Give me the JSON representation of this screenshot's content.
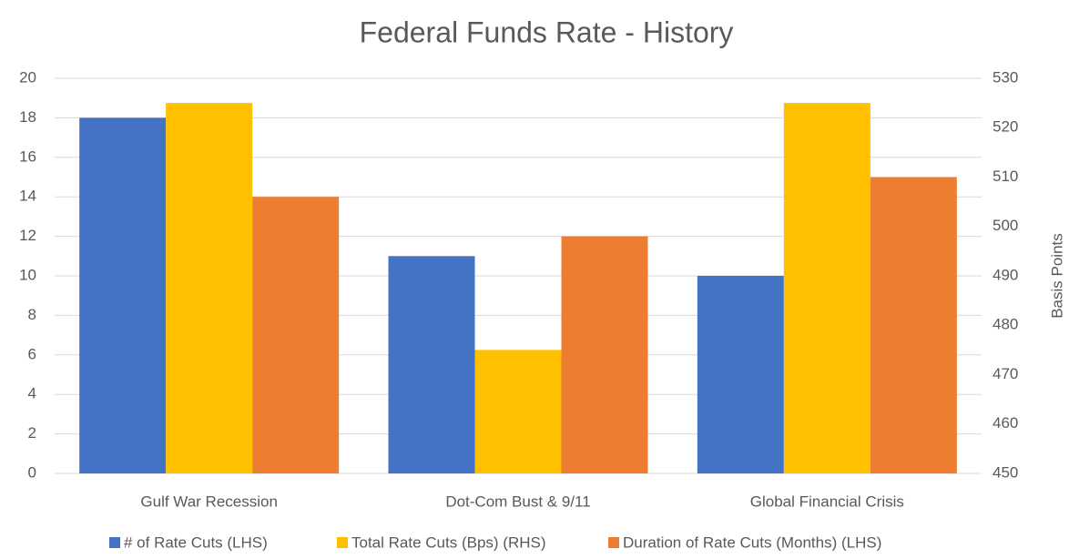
{
  "chart_data": {
    "type": "bar",
    "title": "Federal Funds Rate - History",
    "categories": [
      "Gulf War Recession",
      "Dot-Com Bust & 9/11",
      "Global Financial Crisis"
    ],
    "series": [
      {
        "name": "# of Rate Cuts (LHS)",
        "color": "#4472c4",
        "values": [
          18,
          11,
          10
        ]
      },
      {
        "name": "Total Rate Cuts (Bps) (RHS)",
        "color": "#ffc000",
        "values": [
          525,
          475,
          525
        ],
        "axis": "y2"
      },
      {
        "name": "Duration of Rate Cuts (Months) (LHS)",
        "color": "#ed7d31",
        "values": [
          14,
          12,
          15
        ]
      }
    ],
    "ylim": [
      0,
      20
    ],
    "yticks": [
      0,
      2,
      4,
      6,
      8,
      10,
      12,
      14,
      16,
      18,
      20
    ],
    "y2lim": [
      450,
      530
    ],
    "y2ticks": [
      450,
      460,
      470,
      480,
      490,
      500,
      510,
      520,
      530
    ],
    "y2label": "Basis Points",
    "grid": true,
    "legend": "bottom"
  }
}
